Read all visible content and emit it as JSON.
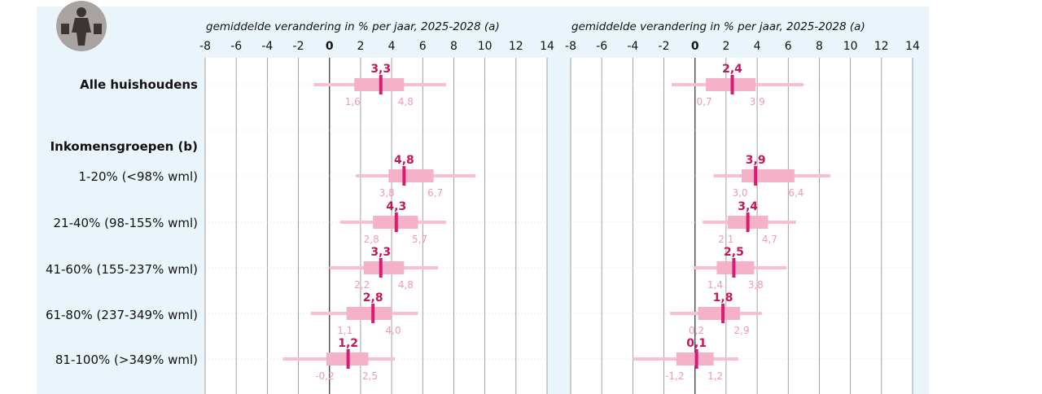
{
  "chart_data": {
    "type": "box",
    "colors": {
      "background": "#eaf4fb",
      "plot_area": "#ffffff",
      "box": "#f5b1c7",
      "whisker": "#f7bfd1",
      "median": "#d81b73",
      "median_label": "#c2185b",
      "quartile_label": "#ef9ab6"
    },
    "row_labels": [
      "Alle huishoudens",
      "Inkomensgroepen (b)",
      "1-20% (<98% wml)",
      "21-40% (98-155% wml)",
      "41-60% (155-237% wml)",
      "61-80% (237-349% wml)",
      "81-100% (>349% wml)"
    ],
    "panels": [
      {
        "title": "gemiddelde verandering in % per jaar, 2025-2028 (a)",
        "xlim": [
          -8,
          14
        ],
        "xticks": [
          "-8",
          "-6",
          "-4",
          "-2",
          "0",
          "2",
          "4",
          "6",
          "8",
          "10",
          "12",
          "14"
        ],
        "series": [
          {
            "row": "Alle huishoudens",
            "whisker_low": -1.0,
            "q1": 1.6,
            "median": 3.3,
            "q3": 4.8,
            "whisker_high": 7.5,
            "label_median": "3,3",
            "label_q1": "1,6",
            "label_q3": "4,8"
          },
          {
            "row": "1-20% (<98% wml)",
            "whisker_low": 1.7,
            "q1": 3.8,
            "median": 4.8,
            "q3": 6.7,
            "whisker_high": 9.4,
            "label_median": "4,8",
            "label_q1": "3,8",
            "label_q3": "6,7"
          },
          {
            "row": "21-40% (98-155% wml)",
            "whisker_low": 0.7,
            "q1": 2.8,
            "median": 4.3,
            "q3": 5.7,
            "whisker_high": 7.5,
            "label_median": "4,3",
            "label_q1": "2,8",
            "label_q3": "5,7"
          },
          {
            "row": "41-60% (155-237% wml)",
            "whisker_low": 0.0,
            "q1": 2.2,
            "median": 3.3,
            "q3": 4.8,
            "whisker_high": 7.0,
            "label_median": "3,3",
            "label_q1": "2,2",
            "label_q3": "4,8"
          },
          {
            "row": "61-80% (237-349% wml)",
            "whisker_low": -1.2,
            "q1": 1.1,
            "median": 2.8,
            "q3": 4.0,
            "whisker_high": 5.7,
            "label_median": "2,8",
            "label_q1": "1,1",
            "label_q3": "4,0"
          },
          {
            "row": "81-100% (>349% wml)",
            "whisker_low": -3.0,
            "q1": -0.2,
            "median": 1.2,
            "q3": 2.5,
            "whisker_high": 4.2,
            "label_median": "1,2",
            "label_q1": "-0,2",
            "label_q3": "2,5"
          }
        ]
      },
      {
        "title": "gemiddelde verandering in % per jaar, 2025-2028 (a)",
        "xlim": [
          -8,
          14
        ],
        "xticks": [
          "-8",
          "-6",
          "-4",
          "-2",
          "0",
          "2",
          "4",
          "6",
          "8",
          "10",
          "12",
          "14"
        ],
        "series": [
          {
            "row": "Alle huishoudens",
            "whisker_low": -1.5,
            "q1": 0.7,
            "median": 2.4,
            "q3": 3.9,
            "whisker_high": 7.0,
            "label_median": "2,4",
            "label_q1": "0,7",
            "label_q3": "3,9"
          },
          {
            "row": "1-20% (<98% wml)",
            "whisker_low": 1.2,
            "q1": 3.0,
            "median": 3.9,
            "q3": 6.4,
            "whisker_high": 8.7,
            "label_median": "3,9",
            "label_q1": "3,0",
            "label_q3": "6,4"
          },
          {
            "row": "21-40% (98-155% wml)",
            "whisker_low": 0.5,
            "q1": 2.1,
            "median": 3.4,
            "q3": 4.7,
            "whisker_high": 6.5,
            "label_median": "3,4",
            "label_q1": "2,1",
            "label_q3": "4,7"
          },
          {
            "row": "41-60% (155-237% wml)",
            "whisker_low": -0.1,
            "q1": 1.4,
            "median": 2.5,
            "q3": 3.8,
            "whisker_high": 5.9,
            "label_median": "2,5",
            "label_q1": "1,4",
            "label_q3": "3,8"
          },
          {
            "row": "61-80% (237-349% wml)",
            "whisker_low": -1.6,
            "q1": 0.2,
            "median": 1.8,
            "q3": 2.9,
            "whisker_high": 4.3,
            "label_median": "1,8",
            "label_q1": "0,2",
            "label_q3": "2,9"
          },
          {
            "row": "81-100% (>349% wml)",
            "whisker_low": -4.0,
            "q1": -1.2,
            "median": 0.1,
            "q3": 1.2,
            "whisker_high": 2.8,
            "label_median": "0,1",
            "label_q1": "-1,2",
            "label_q3": "1,2"
          }
        ]
      }
    ]
  }
}
